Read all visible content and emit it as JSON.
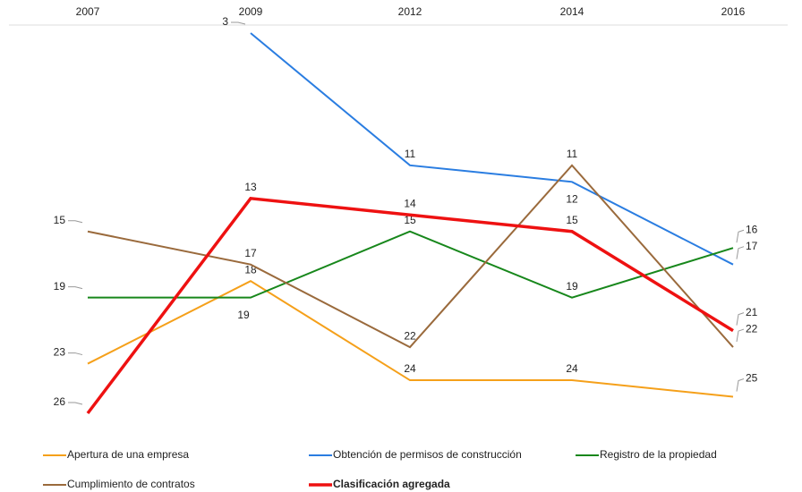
{
  "chart_data": {
    "type": "line",
    "categories": [
      "2007",
      "2009",
      "2012",
      "2014",
      "2016"
    ],
    "ylim": [
      26,
      3
    ],
    "series": [
      {
        "name": "Apertura de una empresa",
        "color": "#f5a01a",
        "values": [
          23,
          18,
          24,
          24,
          25
        ]
      },
      {
        "name": "Obtención de permisos de construcción",
        "color": "#2a7de1",
        "values": [
          null,
          3,
          11,
          12,
          17
        ]
      },
      {
        "name": "Registro de la propiedad",
        "color": "#17871b",
        "values": [
          19,
          19,
          15,
          19,
          16
        ]
      },
      {
        "name": "Cumplimiento de contratos",
        "color": "#9a6a3c",
        "values": [
          15,
          17,
          22,
          11,
          22
        ]
      },
      {
        "name": "Clasificación agregada",
        "color": "#ee1111",
        "values": [
          26,
          13,
          14,
          15,
          21
        ],
        "bold": true
      }
    ]
  }
}
